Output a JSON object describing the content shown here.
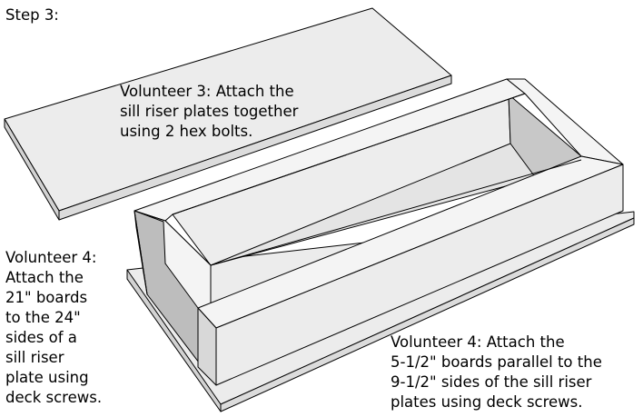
{
  "step_title": "Step 3:",
  "notes": {
    "volunteer3": {
      "lines": [
        "Volunteer 3: Attach the",
        "sill riser plates together",
        "using 2 hex bolts."
      ]
    },
    "volunteer4_left": {
      "lines": [
        "Volunteer 4:",
        "Attach the",
        "21\" boards",
        "to the 24\"",
        "sides of a",
        "sill riser",
        "plate using",
        "deck screws."
      ]
    },
    "volunteer4_right": {
      "lines": [
        "Volunteer 4: Attach the",
        "5-1/2\" boards parallel to the",
        "9-1/2\" sides of the sill riser",
        "plates using deck screws."
      ]
    }
  },
  "colors": {
    "top_face": "#ececec",
    "side_face": "#dcdcdc",
    "inner_shade": "#c8c8c8",
    "end_shade": "#bdbdbd",
    "outline": "#000000"
  }
}
